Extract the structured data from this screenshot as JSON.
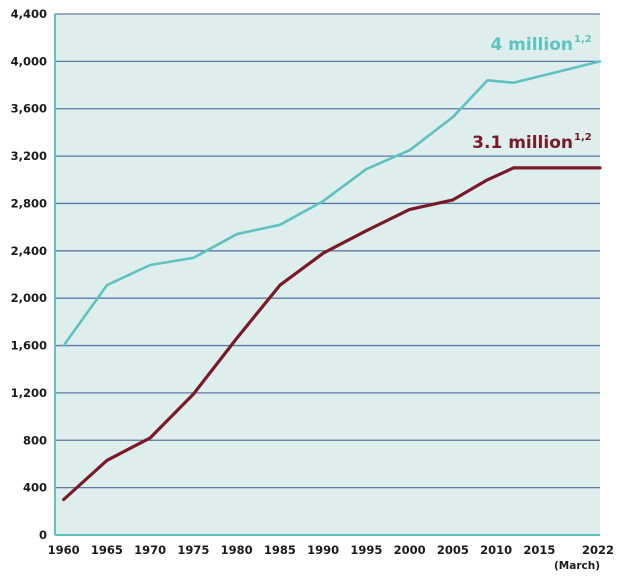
{
  "chart_data": {
    "type": "line",
    "ylim": [
      0,
      4400
    ],
    "yticks": [
      "0",
      "400",
      "800",
      "1,200",
      "1,600",
      "2,000",
      "2,400",
      "2,800",
      "3,200",
      "3,600",
      "4,000",
      "4,400"
    ],
    "ytick_values": [
      0,
      400,
      800,
      1200,
      1600,
      2000,
      2400,
      2800,
      3200,
      3600,
      4000,
      4400
    ],
    "xlim": [
      1959,
      2022
    ],
    "xticks": [
      "1960",
      "1965",
      "1970",
      "1975",
      "1980",
      "1985",
      "1990",
      "1995",
      "2000",
      "2005",
      "2010",
      "2015",
      "2022"
    ],
    "xtick_values": [
      1960,
      1965,
      1970,
      1975,
      1980,
      1985,
      1990,
      1995,
      2000,
      2005,
      2010,
      2015,
      2022
    ],
    "x_unit_label": "(March)",
    "grid": true,
    "series": [
      {
        "label_main": "4 million",
        "label_sup": "1,2",
        "color": "#5fc1c0",
        "x": [
          1960,
          1965,
          1970,
          1975,
          1980,
          1985,
          1990,
          1995,
          2000,
          2005,
          2009,
          2012,
          2022
        ],
        "values": [
          1600,
          2110,
          2280,
          2340,
          2540,
          2620,
          2820,
          3090,
          3250,
          3530,
          3840,
          3820,
          4000
        ]
      },
      {
        "label_main": "3.1 million",
        "label_sup": "1,2",
        "color": "#7a1a28",
        "x": [
          1960,
          1965,
          1970,
          1975,
          1980,
          1985,
          1990,
          1995,
          2000,
          2005,
          2009,
          2012,
          2022
        ],
        "values": [
          300,
          630,
          820,
          1190,
          1660,
          2110,
          2380,
          2570,
          2750,
          2830,
          3000,
          3100,
          3100
        ]
      }
    ]
  }
}
